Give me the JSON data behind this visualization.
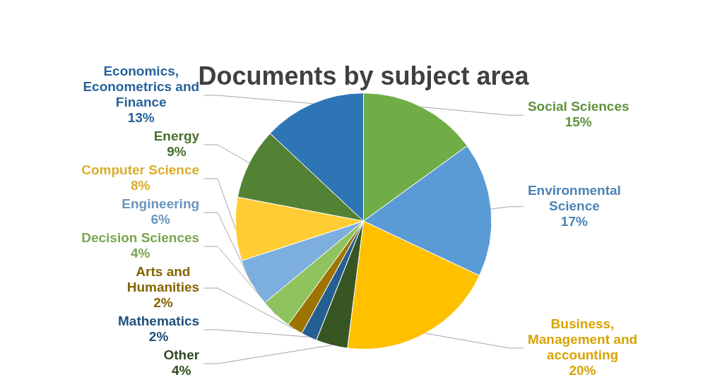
{
  "chart_data": {
    "type": "pie",
    "title": "Documents by subject area",
    "categories": [
      "Social Sciences",
      "Environmental Science",
      "Business, Management and accounting",
      "Other",
      "Mathematics",
      "Arts and Humanities",
      "Decision Sciences",
      "Engineering",
      "Computer Science",
      "Energy",
      "Economics, Econometrics and Finance"
    ],
    "values": [
      15,
      17,
      20,
      4,
      2,
      2,
      4,
      6,
      8,
      9,
      13
    ],
    "value_labels": [
      "15%",
      "17%",
      "20%",
      "4%",
      "2%",
      "2%",
      "4%",
      "6%",
      "8%",
      "9%",
      "13%"
    ],
    "colors": [
      "#70ad47",
      "#5b9bd5",
      "#ffc000",
      "#375623",
      "#255e91",
      "#9e7400",
      "#8fc35e",
      "#7cafdd",
      "#ffcd33",
      "#548235",
      "#2e75b6"
    ],
    "legend": false
  }
}
